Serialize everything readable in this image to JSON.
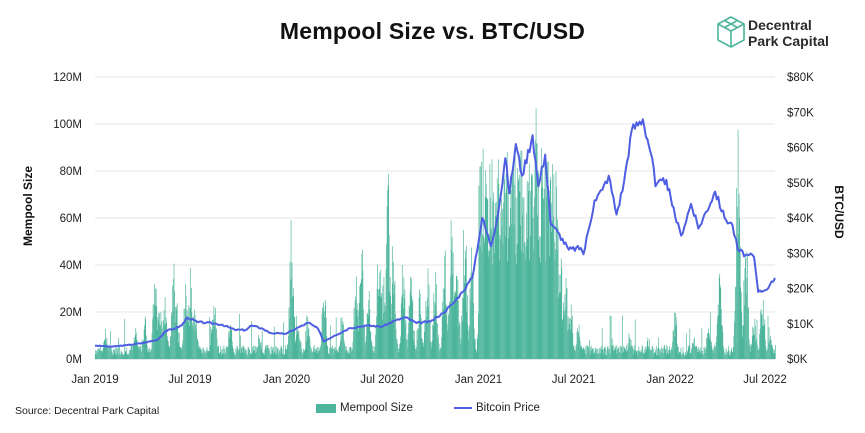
{
  "header": {
    "title": "Mempool Size vs. BTC/USD"
  },
  "brand": {
    "line1": "Decentral",
    "line2": "Park Capital",
    "logo_icon": "cube-icon"
  },
  "source": "Source: Decentral Park Capital",
  "colors": {
    "bars": "#4db59b",
    "line": "#4e5ee3",
    "grid": "#e6e6e6"
  },
  "chart_data": {
    "type": "bar",
    "title": "Mempool Size vs. BTC/USD",
    "left_axis": {
      "label": "Mempool Size",
      "ticks": [
        "0M",
        "20M",
        "40M",
        "60M",
        "80M",
        "100M",
        "120M"
      ],
      "ylim": [
        0,
        120000000
      ]
    },
    "right_axis": {
      "label": "BTC/USD",
      "ticks": [
        "$0K",
        "$10K",
        "$20K",
        "$30K",
        "$40K",
        "$50K",
        "$60K",
        "$70K",
        "$80K"
      ],
      "ylim": [
        0,
        80000
      ]
    },
    "x_ticks": [
      "Jan 2019",
      "Jul 2019",
      "Jan 2020",
      "Jul 2020",
      "Jan 2021",
      "Jul 2021",
      "Jan 2022",
      "Jul 2022"
    ],
    "x_range": [
      "2019-01-01",
      "2022-07-20"
    ],
    "grid": "horizontal",
    "legend_position": "bottom",
    "series": [
      {
        "name": "Mempool Size",
        "type": "bar",
        "axis": "left",
        "baseline": 5000000,
        "spikes": [
          [
            "2019-01-20",
            15000000
          ],
          [
            "2019-03-20",
            16000000
          ],
          [
            "2019-04-05",
            20000000
          ],
          [
            "2019-04-25",
            42000000
          ],
          [
            "2019-05-05",
            28000000
          ],
          [
            "2019-05-14",
            30000000
          ],
          [
            "2019-05-30",
            42000000
          ],
          [
            "2019-06-05",
            26000000
          ],
          [
            "2019-06-22",
            35000000
          ],
          [
            "2019-07-02",
            42000000
          ],
          [
            "2019-07-10",
            28000000
          ],
          [
            "2019-08-15",
            30000000
          ],
          [
            "2019-09-15",
            16000000
          ],
          [
            "2019-11-10",
            12000000
          ],
          [
            "2020-01-10",
            64000000
          ],
          [
            "2020-01-22",
            25000000
          ],
          [
            "2020-02-10",
            22000000
          ],
          [
            "2020-03-12",
            34000000
          ],
          [
            "2020-04-15",
            20000000
          ],
          [
            "2020-05-12",
            38000000
          ],
          [
            "2020-05-22",
            55000000
          ],
          [
            "2020-06-05",
            30000000
          ],
          [
            "2020-06-25",
            65000000
          ],
          [
            "2020-07-05",
            43000000
          ],
          [
            "2020-07-12",
            85000000
          ],
          [
            "2020-07-22",
            55000000
          ],
          [
            "2020-08-10",
            48000000
          ],
          [
            "2020-08-25",
            40000000
          ],
          [
            "2020-09-10",
            30000000
          ],
          [
            "2020-09-25",
            45000000
          ],
          [
            "2020-10-10",
            38000000
          ],
          [
            "2020-10-28",
            50000000
          ],
          [
            "2020-11-10",
            63000000
          ],
          [
            "2020-11-20",
            50000000
          ],
          [
            "2020-12-05",
            67000000
          ],
          [
            "2020-12-18",
            50000000
          ],
          [
            "2021-01-05",
            60000000
          ],
          [
            "2021-01-20",
            70000000
          ],
          [
            "2021-02-05",
            90000000
          ],
          [
            "2021-02-20",
            95000000
          ],
          [
            "2021-03-05",
            85000000
          ],
          [
            "2021-03-20",
            97000000
          ],
          [
            "2021-04-05",
            98000000
          ],
          [
            "2021-04-20",
            108000000
          ],
          [
            "2021-05-01",
            96000000
          ],
          [
            "2021-05-12",
            100000000
          ],
          [
            "2021-05-22",
            80000000
          ],
          [
            "2021-06-05",
            60000000
          ],
          [
            "2021-06-15",
            45000000
          ],
          [
            "2021-06-25",
            25000000
          ],
          [
            "2021-07-10",
            16000000
          ],
          [
            "2021-10-15",
            12000000
          ],
          [
            "2021-11-20",
            10000000
          ],
          [
            "2022-01-10",
            22000000
          ],
          [
            "2022-02-15",
            12000000
          ],
          [
            "2022-03-15",
            18000000
          ],
          [
            "2022-04-05",
            44000000
          ],
          [
            "2022-05-10",
            106000000
          ],
          [
            "2022-05-25",
            60000000
          ],
          [
            "2022-06-10",
            20000000
          ],
          [
            "2022-06-25",
            30000000
          ],
          [
            "2022-07-10",
            12000000
          ]
        ]
      },
      {
        "name": "Bitcoin Price",
        "type": "line",
        "axis": "right",
        "points": [
          [
            "2019-01-01",
            3800
          ],
          [
            "2019-02-01",
            3500
          ],
          [
            "2019-03-01",
            3900
          ],
          [
            "2019-04-01",
            4500
          ],
          [
            "2019-05-01",
            5500
          ],
          [
            "2019-05-15",
            7900
          ],
          [
            "2019-06-01",
            8600
          ],
          [
            "2019-06-15",
            9500
          ],
          [
            "2019-06-26",
            11800
          ],
          [
            "2019-07-15",
            10500
          ],
          [
            "2019-08-01",
            10300
          ],
          [
            "2019-08-15",
            10100
          ],
          [
            "2019-09-01",
            9700
          ],
          [
            "2019-09-24",
            8300
          ],
          [
            "2019-10-15",
            8200
          ],
          [
            "2019-10-26",
            9500
          ],
          [
            "2019-11-15",
            8700
          ],
          [
            "2019-12-01",
            7400
          ],
          [
            "2019-12-20",
            7200
          ],
          [
            "2020-01-01",
            7200
          ],
          [
            "2020-01-20",
            8700
          ],
          [
            "2020-02-12",
            10300
          ],
          [
            "2020-03-01",
            8600
          ],
          [
            "2020-03-12",
            5000
          ],
          [
            "2020-04-01",
            6600
          ],
          [
            "2020-05-01",
            8800
          ],
          [
            "2020-06-01",
            9500
          ],
          [
            "2020-07-01",
            9200
          ],
          [
            "2020-07-28",
            11000
          ],
          [
            "2020-08-15",
            11800
          ],
          [
            "2020-09-05",
            10200
          ],
          [
            "2020-10-01",
            10600
          ],
          [
            "2020-10-25",
            13000
          ],
          [
            "2020-11-15",
            16000
          ],
          [
            "2020-12-01",
            19000
          ],
          [
            "2020-12-20",
            23000
          ],
          [
            "2021-01-08",
            40000
          ],
          [
            "2021-01-25",
            32000
          ],
          [
            "2021-02-10",
            44000
          ],
          [
            "2021-02-21",
            57000
          ],
          [
            "2021-03-01",
            47000
          ],
          [
            "2021-03-13",
            61000
          ],
          [
            "2021-03-25",
            52000
          ],
          [
            "2021-04-14",
            63500
          ],
          [
            "2021-04-25",
            49000
          ],
          [
            "2021-05-08",
            58000
          ],
          [
            "2021-05-19",
            38000
          ],
          [
            "2021-06-01",
            36000
          ],
          [
            "2021-06-22",
            31000
          ],
          [
            "2021-07-15",
            31500
          ],
          [
            "2021-07-20",
            29700
          ],
          [
            "2021-08-10",
            45000
          ],
          [
            "2021-08-25",
            48000
          ],
          [
            "2021-09-06",
            52000
          ],
          [
            "2021-09-21",
            41000
          ],
          [
            "2021-10-05",
            50000
          ],
          [
            "2021-10-20",
            65000
          ],
          [
            "2021-11-10",
            68000
          ],
          [
            "2021-11-28",
            57000
          ],
          [
            "2021-12-04",
            49000
          ],
          [
            "2021-12-25",
            50800
          ],
          [
            "2022-01-05",
            43500
          ],
          [
            "2022-01-22",
            35000
          ],
          [
            "2022-02-10",
            44000
          ],
          [
            "2022-02-24",
            37000
          ],
          [
            "2022-03-28",
            47500
          ],
          [
            "2022-04-15",
            40000
          ],
          [
            "2022-04-30",
            38000
          ],
          [
            "2022-05-10",
            31000
          ],
          [
            "2022-05-25",
            29500
          ],
          [
            "2022-06-10",
            29000
          ],
          [
            "2022-06-18",
            19000
          ],
          [
            "2022-07-01",
            19500
          ],
          [
            "2022-07-10",
            21000
          ],
          [
            "2022-07-20",
            23000
          ]
        ]
      }
    ]
  }
}
